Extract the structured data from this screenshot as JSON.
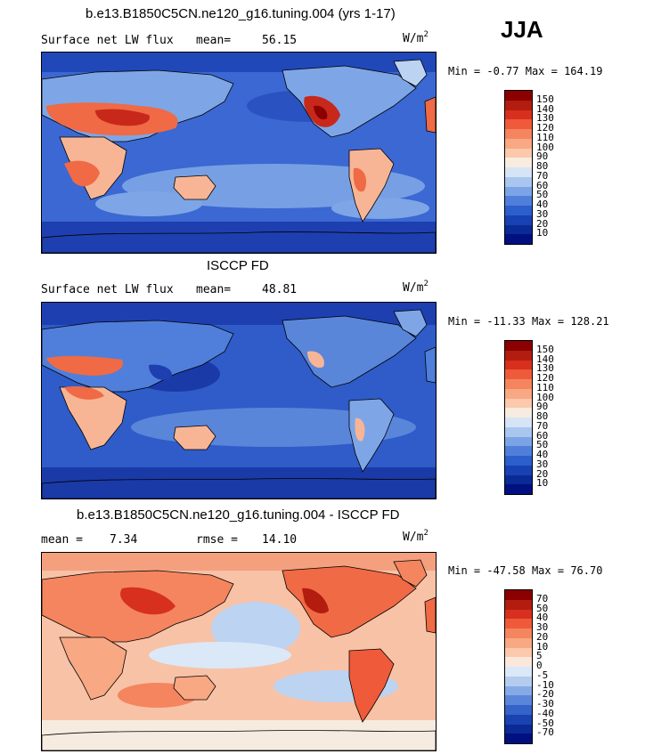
{
  "season": "JJA",
  "panels": [
    {
      "title": "b.e13.B1850C5CN.ne120_g16.tuning.004 (yrs 1-17)",
      "left_text": "Surface net LW flux",
      "stat_label": "mean=",
      "stat_value": "56.15",
      "units_base": "W/m",
      "units_exp": "2",
      "min_label": "Min =",
      "min_value": "-0.77",
      "max_label": "Max =",
      "max_value": "164.19",
      "colorbar_labels": [
        "150",
        "140",
        "130",
        "120",
        "110",
        "100",
        "90",
        "80",
        "70",
        "60",
        "50",
        "40",
        "30",
        "20",
        "10"
      ],
      "colorbar_colors": [
        "#8b0000",
        "#b31d0f",
        "#d7301f",
        "#ef5a3a",
        "#f4855f",
        "#f8a882",
        "#fcc9ac",
        "#f7ecdf",
        "#d6e4f5",
        "#a9c6ef",
        "#7aa4e6",
        "#4f7fda",
        "#2c5fcb",
        "#1841b3",
        "#0a2a95",
        "#001080"
      ]
    },
    {
      "title": "ISCCP FD",
      "left_text": "Surface net LW flux",
      "stat_label": "mean=",
      "stat_value": "48.81",
      "units_base": "W/m",
      "units_exp": "2",
      "min_label": "Min =",
      "min_value": "-11.33",
      "max_label": "Max =",
      "max_value": "128.21",
      "colorbar_labels": [
        "150",
        "140",
        "130",
        "120",
        "110",
        "100",
        "90",
        "80",
        "70",
        "60",
        "50",
        "40",
        "30",
        "20",
        "10"
      ],
      "colorbar_colors": [
        "#8b0000",
        "#b31d0f",
        "#d7301f",
        "#ef5a3a",
        "#f4855f",
        "#f8a882",
        "#fcc9ac",
        "#f7ecdf",
        "#d6e4f5",
        "#a9c6ef",
        "#7aa4e6",
        "#4f7fda",
        "#2c5fcb",
        "#1841b3",
        "#0a2a95",
        "#001080"
      ]
    },
    {
      "title": "b.e13.B1850C5CN.ne120_g16.tuning.004 - ISCCP FD",
      "left_text": "mean =",
      "left_value": "7.34",
      "stat_label": "rmse =",
      "stat_value": "14.10",
      "units_base": "W/m",
      "units_exp": "2",
      "min_label": "Min =",
      "min_value": "-47.58",
      "max_label": "Max =",
      "max_value": "76.70",
      "colorbar_labels": [
        "70",
        "50",
        "40",
        "30",
        "20",
        "10",
        "5",
        "0",
        "-5",
        "-10",
        "-20",
        "-30",
        "-40",
        "-50",
        "-70"
      ],
      "colorbar_colors": [
        "#8b0000",
        "#b31d0f",
        "#d7301f",
        "#ef5a3a",
        "#f4855f",
        "#f8a882",
        "#fcc9ac",
        "#fbe8dc",
        "#dbe8f7",
        "#b4cdef",
        "#86aae6",
        "#5a86da",
        "#3463c9",
        "#1a43b1",
        "#0b2a95",
        "#001080"
      ]
    }
  ],
  "map_colors": {
    "blue_deep": "#1e3fb0",
    "blue_mid": "#3b68d2",
    "blue_light": "#7ea6e6",
    "blue_pale": "#bcd3f2",
    "cream": "#f6ebdf",
    "orange_light": "#f8b595",
    "orange": "#ef6a45",
    "red": "#c8281a",
    "dark_red": "#8b0000"
  }
}
